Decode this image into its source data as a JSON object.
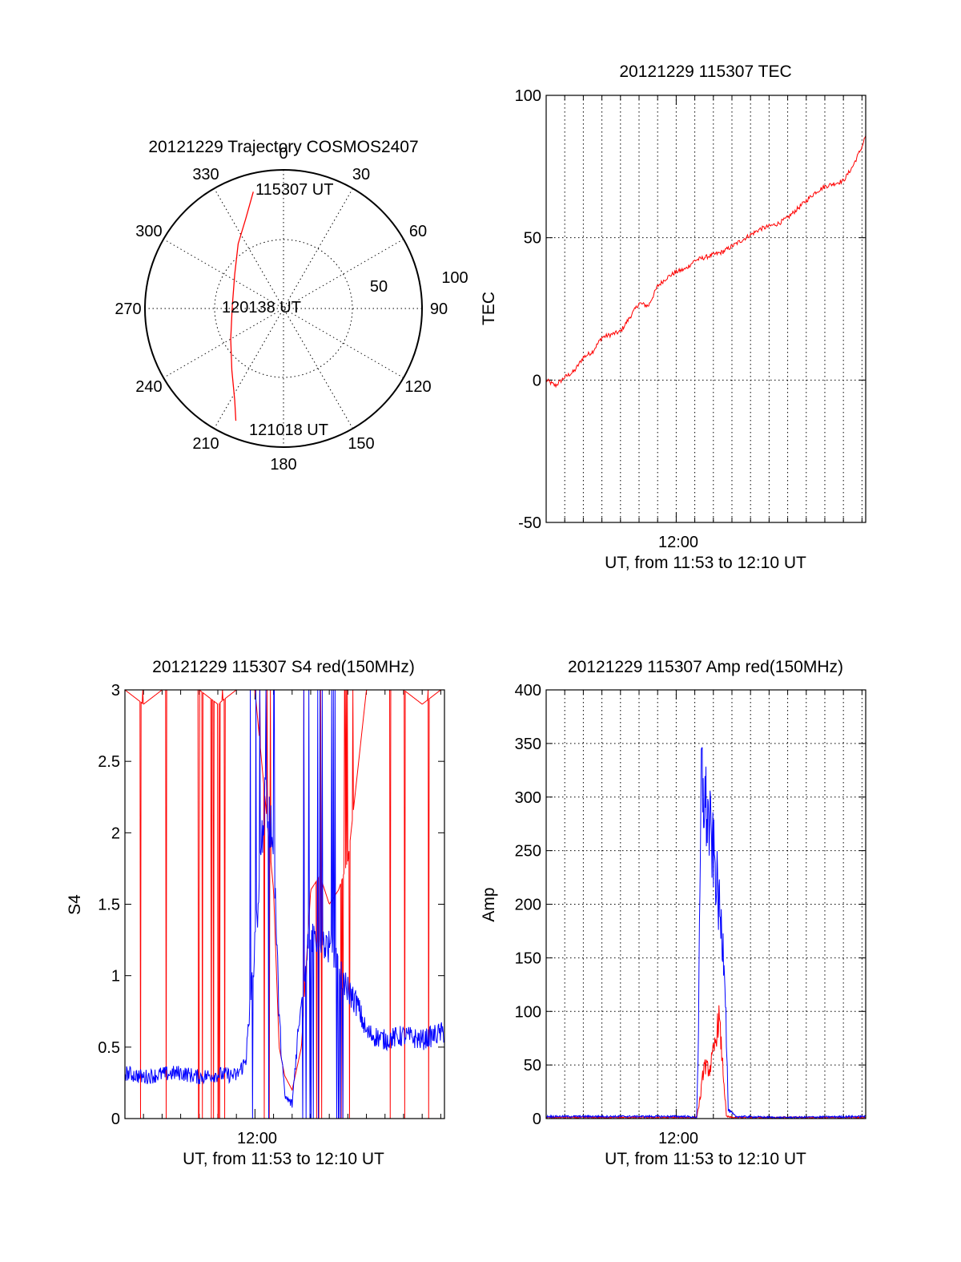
{
  "chart_data": [
    {
      "type": "polar",
      "title": "20121229 Trajectory COSMOS2407",
      "azimuth_labels": [
        "0",
        "30",
        "60",
        "90",
        "120",
        "150",
        "180",
        "210",
        "240",
        "270",
        "300",
        "330"
      ],
      "azimuth_values": [
        0,
        30,
        60,
        90,
        120,
        150,
        180,
        210,
        240,
        270,
        300,
        330
      ],
      "radial_labels": [
        "50",
        "100"
      ],
      "radial_max": 100,
      "annotations": [
        "115307 UT",
        "120138 UT",
        "121018 UT"
      ],
      "trajectory_color": "#ff0000",
      "trajectory": [
        {
          "az": 345.5,
          "r": 87
        },
        {
          "az": 337,
          "r": 70
        },
        {
          "az": 325,
          "r": 57
        },
        {
          "az": 305,
          "r": 43
        },
        {
          "az": 272,
          "r": 37
        },
        {
          "az": 240,
          "r": 44
        },
        {
          "az": 220,
          "r": 58
        },
        {
          "az": 208,
          "r": 75
        },
        {
          "az": 203,
          "r": 88
        }
      ]
    },
    {
      "type": "line",
      "title": "20121229 115307 TEC",
      "ylabel": "TEC",
      "xlabel": "UT, from 11:53 to 12:10 UT",
      "x_tick_labels": [
        "12:00"
      ],
      "x_range_minutes": [
        0,
        17.2
      ],
      "x_major_tick_minutes": 7,
      "ylim": [
        -50,
        100
      ],
      "y_ticks": [
        -50,
        0,
        50,
        100
      ],
      "y_tick_labels": [
        "-50",
        "0",
        "50",
        "100"
      ],
      "grid": true,
      "series": [
        {
          "color": "#ff0000",
          "x": [
            0,
            0.5,
            1,
            1.5,
            2,
            2.5,
            3,
            3.5,
            4,
            4.5,
            5,
            5.5,
            6,
            6.5,
            7,
            7.5,
            8,
            8.5,
            9,
            9.5,
            10,
            10.5,
            11,
            11.5,
            12,
            12.5,
            13,
            13.5,
            14,
            14.5,
            15,
            15.5,
            16,
            16.5,
            17,
            17.2
          ],
          "y": [
            0,
            -2,
            1,
            3,
            8,
            10,
            15,
            16,
            17,
            22,
            27,
            26,
            33,
            36,
            38,
            39,
            42,
            43,
            44,
            45,
            47,
            49,
            51,
            53,
            54,
            55,
            57,
            60,
            63,
            66,
            68,
            69,
            70,
            75,
            82,
            86
          ]
        }
      ]
    },
    {
      "type": "line",
      "title": "20121229 115307 S4 red(150MHz)",
      "ylabel": "S4",
      "xlabel": "UT, from 11:53 to 12:10 UT",
      "x_tick_labels": [
        "12:00"
      ],
      "x_range_minutes": [
        0,
        17.2
      ],
      "x_major_tick_minutes": 7,
      "ylim": [
        0,
        3
      ],
      "y_ticks": [
        0,
        0.5,
        1,
        1.5,
        2,
        2.5,
        3
      ],
      "y_tick_labels": [
        "0",
        "0.5",
        "1",
        "1.5",
        "2",
        "2.5",
        "3"
      ],
      "grid": false,
      "series": [
        {
          "color": "#ff0000",
          "x": [
            0,
            1,
            2,
            3,
            4,
            5,
            6,
            7,
            7.5,
            8,
            8.3,
            8.6,
            9,
            9.5,
            10,
            10.5,
            11,
            11.5,
            12,
            13,
            14,
            15,
            16,
            17,
            17.2
          ],
          "y": [
            3.0,
            2.9,
            3.0,
            3.0,
            3.0,
            2.9,
            3.0,
            3.0,
            2.3,
            1.6,
            0.5,
            0.3,
            0.2,
            0.5,
            1.6,
            1.7,
            1.5,
            1.6,
            1.8,
            3.0,
            3.0,
            3.0,
            2.9,
            3.0,
            3.0
          ]
        },
        {
          "color": "#0000ff",
          "x": [
            0,
            1,
            2,
            3,
            4,
            5,
            6,
            6.5,
            7,
            7.5,
            8,
            8.3,
            8.6,
            9,
            9.5,
            10,
            11,
            12,
            12.5,
            13,
            14,
            15,
            16,
            17,
            17.2
          ],
          "y": [
            0.32,
            0.29,
            0.31,
            0.32,
            0.29,
            0.31,
            0.3,
            0.4,
            1.2,
            2.2,
            2.0,
            0.7,
            0.15,
            0.1,
            0.9,
            1.3,
            1.2,
            0.9,
            0.8,
            0.6,
            0.55,
            0.58,
            0.55,
            0.6,
            0.6
          ]
        }
      ]
    },
    {
      "type": "line",
      "title": "20121229 115307 Amp red(150MHz)",
      "ylabel": "Amp",
      "xlabel": "UT, from 11:53 to 12:10 UT",
      "x_tick_labels": [
        "12:00"
      ],
      "x_range_minutes": [
        0,
        17.2
      ],
      "x_major_tick_minutes": 7,
      "ylim": [
        0,
        400
      ],
      "y_ticks": [
        0,
        50,
        100,
        150,
        200,
        250,
        300,
        350,
        400
      ],
      "y_tick_labels": [
        "0",
        "50",
        "100",
        "150",
        "200",
        "250",
        "300",
        "350",
        "400"
      ],
      "grid": true,
      "series": [
        {
          "color": "#ff0000",
          "x": [
            0,
            6,
            8.1,
            8.3,
            8.5,
            8.8,
            9.1,
            9.3,
            9.5,
            9.7,
            10,
            17.2
          ],
          "y": [
            1,
            1,
            1,
            20,
            50,
            45,
            70,
            95,
            50,
            2,
            1,
            1
          ]
        },
        {
          "color": "#0000ff",
          "x": [
            0,
            7.5,
            8.1,
            8.2,
            8.35,
            8.5,
            8.8,
            9.1,
            9.4,
            9.6,
            9.8,
            10.2,
            12.5,
            17.2
          ],
          "y": [
            2,
            2,
            1,
            80,
            320,
            300,
            270,
            235,
            180,
            150,
            8,
            2,
            1,
            2
          ]
        }
      ]
    }
  ]
}
